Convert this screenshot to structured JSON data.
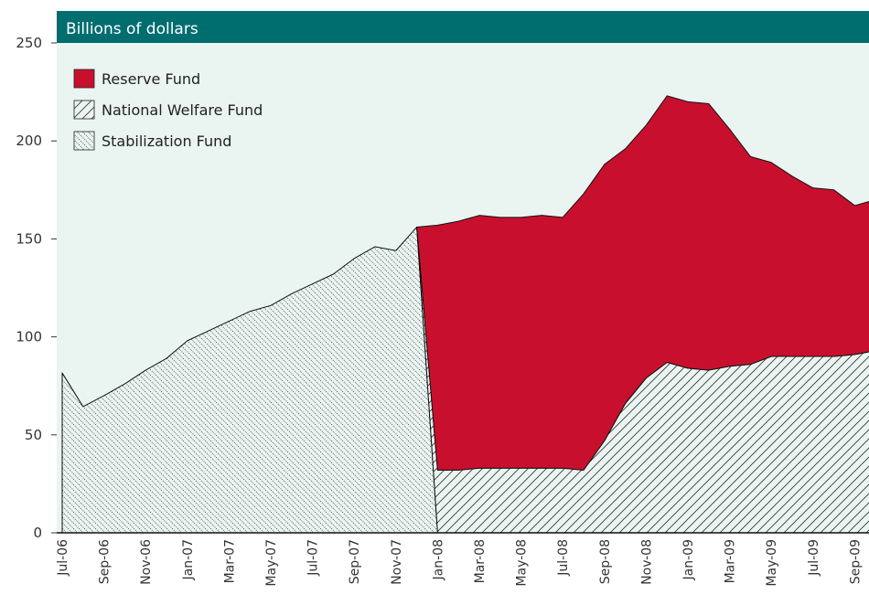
{
  "chart_data": {
    "type": "stacked_area",
    "y_label": "Billions of dollars",
    "categories": [
      "Jul-06",
      null,
      "Sep-06",
      null,
      "Nov-06",
      null,
      "Jan-07",
      null,
      "Mar-07",
      null,
      "May-07",
      null,
      "Jul-07",
      null,
      "Sep-07",
      null,
      "Nov-07",
      null,
      "Jan-08",
      null,
      "Mar-08",
      null,
      "May-08",
      null,
      "Jul-08",
      null,
      "Sep-08",
      null,
      "Nov-08",
      null,
      "Jan-09",
      null,
      "Mar-09",
      null,
      "May-09",
      null,
      "Jul-09",
      null,
      "Sep-09",
      null
    ],
    "series": [
      {
        "name": "Stabilization Fund",
        "color": "#222222",
        "pattern": "dots",
        "values": [
          81.6,
          64.4,
          70,
          76,
          83,
          89,
          98,
          103,
          108,
          113,
          116,
          122,
          127,
          132,
          140,
          146,
          144,
          156,
          0,
          null,
          null,
          null,
          null,
          null,
          null,
          null,
          null,
          null,
          null,
          null,
          null,
          null,
          null,
          null,
          null,
          null,
          null,
          null,
          null,
          null
        ]
      },
      {
        "name": "National Welfare Fund",
        "color": "#222222",
        "pattern": "lines",
        "values": [
          null,
          null,
          null,
          null,
          null,
          null,
          null,
          null,
          null,
          null,
          null,
          null,
          null,
          null,
          null,
          null,
          null,
          0,
          32,
          32,
          33,
          33,
          33,
          33,
          33,
          32,
          47,
          66,
          79,
          87,
          84,
          83,
          85,
          86,
          90,
          90,
          90,
          90,
          91,
          93
        ]
      },
      {
        "name": "Reserve Fund",
        "color": "#c8102e",
        "pattern": "solid",
        "values": [
          null,
          null,
          null,
          null,
          null,
          null,
          null,
          null,
          null,
          null,
          null,
          null,
          null,
          null,
          null,
          null,
          null,
          0,
          125,
          127,
          129,
          128,
          128,
          129,
          128,
          141,
          141,
          130,
          129,
          136,
          136,
          136,
          121,
          106,
          99,
          92,
          86,
          85,
          76,
          77
        ]
      }
    ],
    "ylim": [
      0,
      250
    ],
    "yticks": [
      0,
      50,
      100,
      150,
      200,
      250
    ],
    "legend": "upper left"
  }
}
